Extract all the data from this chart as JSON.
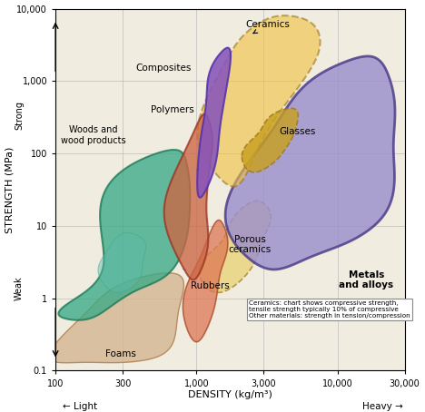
{
  "xlabel": "DENSITY (kg/m³)",
  "ylabel": "STRENGTH (MPa)",
  "xlim": [
    100,
    30000
  ],
  "ylim": [
    0.1,
    10000
  ],
  "background_color": "#f0ede0",
  "grid_color": "#bbbbbb",
  "note_text": "Ceramics: chart shows compressive strength,\ntensile strength typically 10% of compressive\nOther materials: strength in tension/compression",
  "x_ticks": [
    100,
    300,
    1000,
    3000,
    10000,
    30000
  ],
  "x_tick_labels": [
    "100",
    "300",
    "1,000",
    "3,000",
    "10,000",
    "30,000"
  ],
  "y_ticks": [
    0.1,
    1,
    10,
    100,
    1000,
    10000
  ],
  "y_tick_labels": [
    "0.1",
    "1",
    "10",
    "100",
    "1,000",
    "10,000"
  ]
}
